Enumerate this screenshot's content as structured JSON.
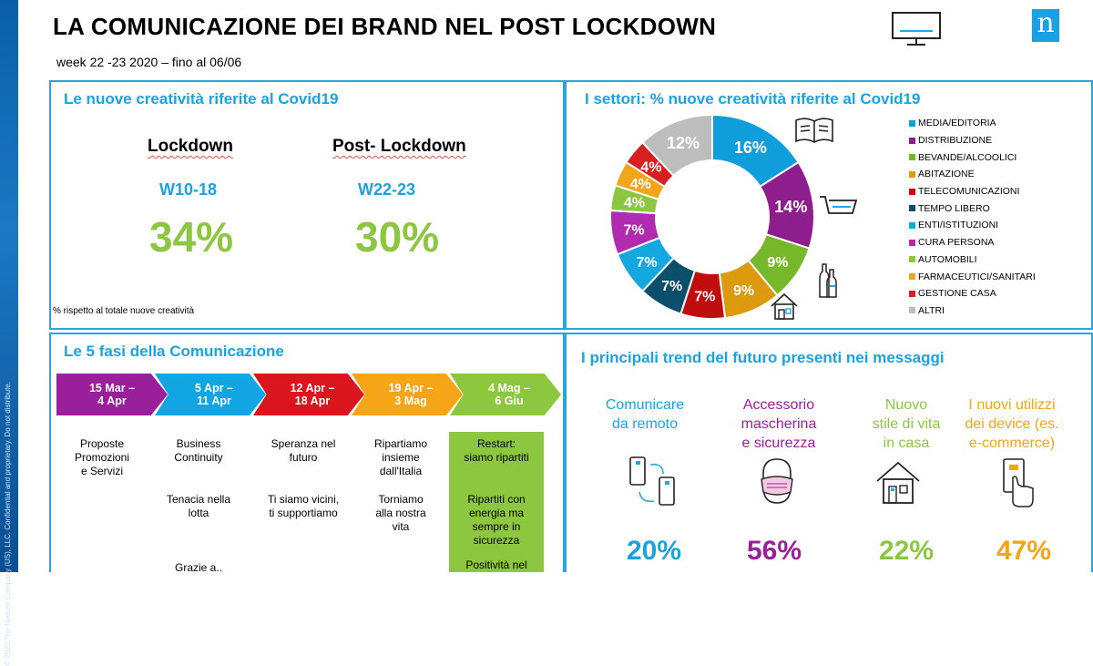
{
  "header": {
    "title": "LA COMUNICAZIONE DEI BRAND NEL POST LOCKDOWN",
    "subtitle": "week 22 -23 2020 – fino al 06/06",
    "logo_letter": "n"
  },
  "sidebar": {
    "copyright": "© 2020 The Nielsen Company (US), LLC. Confidential and proprietary. Do not distribute."
  },
  "covid_panel": {
    "title": "Le nuove creatività riferite al Covid19",
    "lockdown": {
      "label": "Lockdown",
      "week": "W10-18",
      "value": "34%"
    },
    "post_lockdown": {
      "label": "Post- Lockdown",
      "week": "W22-23",
      "value": "30%"
    },
    "note": "% rispetto al totale nuove creatività"
  },
  "sectors_panel": {
    "title": "I settori: % nuove creatività riferite al Covid19"
  },
  "chart_data": {
    "type": "pie",
    "title": "I settori: % nuove creatività riferite al Covid19",
    "donut": true,
    "legend_position": "right",
    "slices": [
      {
        "label": "MEDIA/EDITORIA",
        "value": 16,
        "display": "16%",
        "color": "#0f9ddb"
      },
      {
        "label": "DISTRIBUZIONE",
        "value": 14,
        "display": "14%",
        "color": "#8e1d8e"
      },
      {
        "label": "BEVANDE/ALCOOLICI",
        "value": 9,
        "display": "9%",
        "color": "#76b82a"
      },
      {
        "label": "ABITAZIONE",
        "value": 9,
        "display": "9%",
        "color": "#dc9a0e"
      },
      {
        "label": "TELECOMUNICAZIONI",
        "value": 7,
        "display": "7%",
        "color": "#c00d0d"
      },
      {
        "label": "TEMPO LIBERO",
        "value": 7,
        "display": "7%",
        "color": "#0b4f6c"
      },
      {
        "label": "ENTI/ISTITUZIONI",
        "value": 7,
        "display": "7%",
        "color": "#15a7e0"
      },
      {
        "label": "CURA PERSONA",
        "value": 7,
        "display": "7%",
        "color": "#b12bb1"
      },
      {
        "label": "AUTOMOBILI",
        "value": 4,
        "display": "4%",
        "color": "#8dc63f"
      },
      {
        "label": "FARMACEUTICI/SANITARI",
        "value": 4,
        "display": "4%",
        "color": "#f2a516"
      },
      {
        "label": "GESTIONE CASA",
        "value": 4,
        "display": "4%",
        "color": "#d91f1f"
      },
      {
        "label": "ALTRI",
        "value": 12,
        "display": "12%",
        "color": "#bdbdbd"
      }
    ]
  },
  "phases_panel": {
    "title": "Le 5 fasi della Comunicazione",
    "phases": [
      {
        "label": "15 Mar –\n4 Apr",
        "color": "#9a1f9a",
        "texts": [
          "Proposte\nPromozioni\ne Servizi"
        ]
      },
      {
        "label": "5 Apr –\n11 Apr",
        "color": "#12a5e3",
        "texts": [
          "Business\nContinuity",
          "Tenacia nella\nlotta",
          "Grazie a.."
        ]
      },
      {
        "label": "12 Apr –\n18 Apr",
        "color": "#d9161d",
        "texts": [
          "Speranza nel\nfuturo",
          "Ti siamo vicini,\nti supportiamo"
        ]
      },
      {
        "label": "19 Apr –\n3 Mag",
        "color": "#f5a515",
        "texts": [
          "Ripartiamo\ninsieme\ndall'Italia",
          "Torniamo\nalla nostra\nvita"
        ]
      },
      {
        "label": "4 Mag –\n6 Giu",
        "color": "#8dc63f",
        "texts": [
          "Restart:\nsiamo ripartiti",
          "Ripartiti con\nenergia ma\nsempre in\nsicurezza",
          "Positività nel"
        ]
      }
    ]
  },
  "trends_panel": {
    "title": "I principali trend del futuro presenti nei messaggi",
    "trends": [
      {
        "label": "Comunicare\nda remoto",
        "value": "20%",
        "color": "#1aa3df",
        "icon": "remote-phones-icon"
      },
      {
        "label": "Accessorio\nmascherina\ne sicurezza",
        "value": "56%",
        "color": "#9a1f9a",
        "icon": "mask-face-icon"
      },
      {
        "label": "Nuovo\nstile di vita\nin casa",
        "value": "22%",
        "color": "#8dc63f",
        "icon": "house-icon"
      },
      {
        "label": "I nuovi utilizzi\ndei device (es.\ne-commerce)",
        "value": "47%",
        "color": "#f5a515",
        "icon": "hand-phone-icon"
      }
    ]
  }
}
